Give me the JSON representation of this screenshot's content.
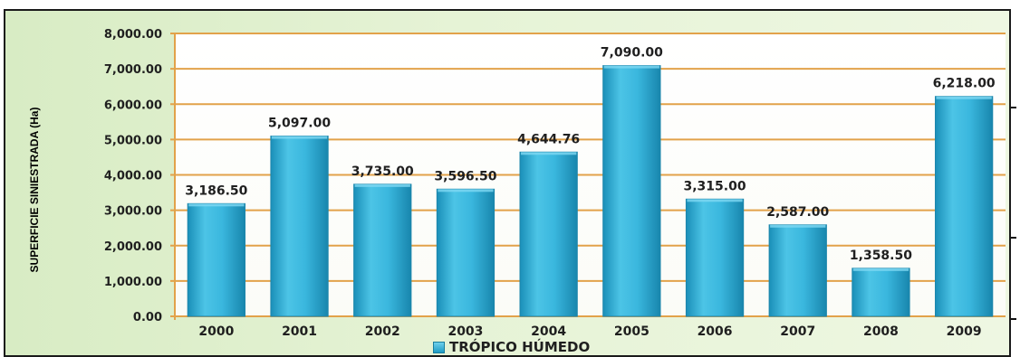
{
  "colors": {
    "bar": "#36b5dc",
    "bar_edge": "#1c86ab",
    "gridline": "#e2a24a",
    "background": "#e3f1d3"
  },
  "chart_data": {
    "type": "bar",
    "title": "",
    "xlabel": "",
    "ylabel": "SUPERFICIE SINIESTRADA (Ha)",
    "categories": [
      "2000",
      "2001",
      "2002",
      "2003",
      "2004",
      "2005",
      "2006",
      "2007",
      "2008",
      "2009"
    ],
    "series": [
      {
        "name": "TRÓPICO HÚMEDO",
        "values": [
          3186.5,
          5097.0,
          3735.0,
          3596.5,
          4644.76,
          7090.0,
          3315.0,
          2587.0,
          1358.5,
          6218.0
        ],
        "labels": [
          "3,186.50",
          "5,097.00",
          "3,735.00",
          "3,596.50",
          "4,644.76",
          "7,090.00",
          "3,315.00",
          "2,587.00",
          "1,358.50",
          "6,218.00"
        ]
      }
    ],
    "ylim": [
      0,
      8000
    ],
    "yticks": [
      "0.00",
      "1,000.00",
      "2,000.00",
      "3,000.00",
      "4,000.00",
      "5,000.00",
      "6,000.00",
      "7,000.00",
      "8,000.00"
    ],
    "grid": true,
    "legend": "bottom"
  }
}
